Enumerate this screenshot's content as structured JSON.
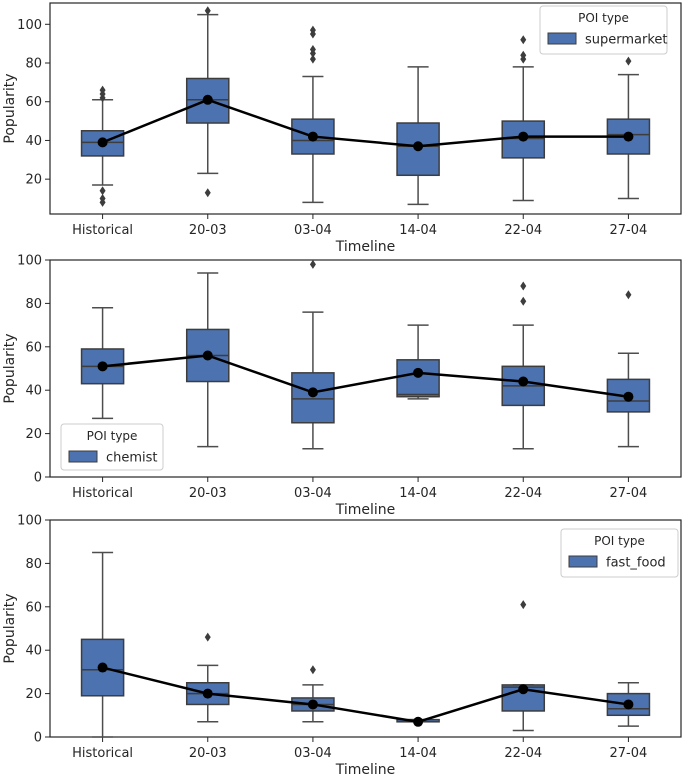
{
  "colors": {
    "box_fill": "#4c72b0",
    "box_edge": "#3d3d3d",
    "whisker": "#4d4d4d",
    "mean_line": "#000000",
    "frame": "#262626",
    "legend_border": "#cccccc"
  },
  "chart_data": [
    {
      "type": "box",
      "xlabel": "Timeline",
      "ylabel": "Popularity",
      "ylim": [
        2,
        111
      ],
      "yticks": [
        20,
        40,
        60,
        80,
        100
      ],
      "categories": [
        "Historical",
        "20-03",
        "03-04",
        "14-04",
        "22-04",
        "27-04"
      ],
      "legend": {
        "title": "POI type",
        "label": "supermarket",
        "position": "upper right"
      },
      "series": [
        {
          "name": "supermarket",
          "boxes": [
            {
              "whislo": 17,
              "q1": 32,
              "med": 39,
              "q3": 45,
              "whishi": 61,
              "mean": 39,
              "fliers": [
                8,
                10,
                14,
                62,
                64,
                66
              ]
            },
            {
              "whislo": 23,
              "q1": 49,
              "med": 61,
              "q3": 72,
              "whishi": 105,
              "mean": 61,
              "fliers": [
                13,
                107
              ]
            },
            {
              "whislo": 8,
              "q1": 33,
              "med": 40,
              "q3": 51,
              "whishi": 73,
              "mean": 42,
              "fliers": [
                82,
                85,
                87,
                95,
                97
              ]
            },
            {
              "whislo": 7,
              "q1": 22,
              "med": 37,
              "q3": 49,
              "whishi": 78,
              "mean": 37,
              "fliers": []
            },
            {
              "whislo": 9,
              "q1": 31,
              "med": 41,
              "q3": 50,
              "whishi": 78,
              "mean": 42,
              "fliers": [
                82,
                84,
                92
              ]
            },
            {
              "whislo": 10,
              "q1": 33,
              "med": 43,
              "q3": 51,
              "whishi": 74,
              "mean": 42,
              "fliers": [
                81
              ]
            }
          ]
        }
      ]
    },
    {
      "type": "box",
      "xlabel": "Timeline",
      "ylabel": "Popularity",
      "ylim": [
        0,
        100
      ],
      "yticks": [
        0,
        20,
        40,
        60,
        80,
        100
      ],
      "categories": [
        "Historical",
        "20-03",
        "03-04",
        "14-04",
        "22-04",
        "27-04"
      ],
      "legend": {
        "title": "POI type",
        "label": "chemist",
        "position": "lower left"
      },
      "series": [
        {
          "name": "chemist",
          "boxes": [
            {
              "whislo": 27,
              "q1": 43,
              "med": 51,
              "q3": 59,
              "whishi": 78,
              "mean": 51,
              "fliers": []
            },
            {
              "whislo": 14,
              "q1": 44,
              "med": 56,
              "q3": 68,
              "whishi": 94,
              "mean": 56,
              "fliers": []
            },
            {
              "whislo": 13,
              "q1": 25,
              "med": 36,
              "q3": 48,
              "whishi": 76,
              "mean": 39,
              "fliers": [
                98
              ]
            },
            {
              "whislo": 36,
              "q1": 37,
              "med": 38,
              "q3": 54,
              "whishi": 70,
              "mean": 48,
              "fliers": []
            },
            {
              "whislo": 13,
              "q1": 33,
              "med": 42,
              "q3": 51,
              "whishi": 70,
              "mean": 44,
              "fliers": [
                81,
                88
              ]
            },
            {
              "whislo": 14,
              "q1": 30,
              "med": 35,
              "q3": 45,
              "whishi": 57,
              "mean": 37,
              "fliers": [
                84
              ]
            }
          ]
        }
      ]
    },
    {
      "type": "box",
      "xlabel": "Timeline",
      "ylabel": "Popularity",
      "ylim": [
        0,
        100
      ],
      "yticks": [
        0,
        20,
        40,
        60,
        80,
        100
      ],
      "categories": [
        "Historical",
        "20-03",
        "03-04",
        "14-04",
        "22-04",
        "27-04"
      ],
      "legend": {
        "title": "POI type",
        "label": "fast_food",
        "position": "upper right"
      },
      "series": [
        {
          "name": "fast_food",
          "boxes": [
            {
              "whislo": 0,
              "q1": 19,
              "med": 31,
              "q3": 45,
              "whishi": 85,
              "mean": 32,
              "fliers": []
            },
            {
              "whislo": 7,
              "q1": 15,
              "med": 20,
              "q3": 25,
              "whishi": 33,
              "mean": 20,
              "fliers": [
                46
              ]
            },
            {
              "whislo": 7,
              "q1": 12,
              "med": 15,
              "q3": 18,
              "whishi": 24,
              "mean": 15,
              "fliers": [
                31
              ]
            },
            {
              "whislo": 7,
              "q1": 7,
              "med": 7,
              "q3": 8,
              "whishi": 8,
              "mean": 7,
              "fliers": []
            },
            {
              "whislo": 3,
              "q1": 12,
              "med": 23,
              "q3": 24,
              "whishi": 24,
              "mean": 22,
              "fliers": [
                61
              ]
            },
            {
              "whislo": 5,
              "q1": 10,
              "med": 13,
              "q3": 20,
              "whishi": 25,
              "mean": 15,
              "fliers": []
            }
          ]
        }
      ]
    }
  ]
}
